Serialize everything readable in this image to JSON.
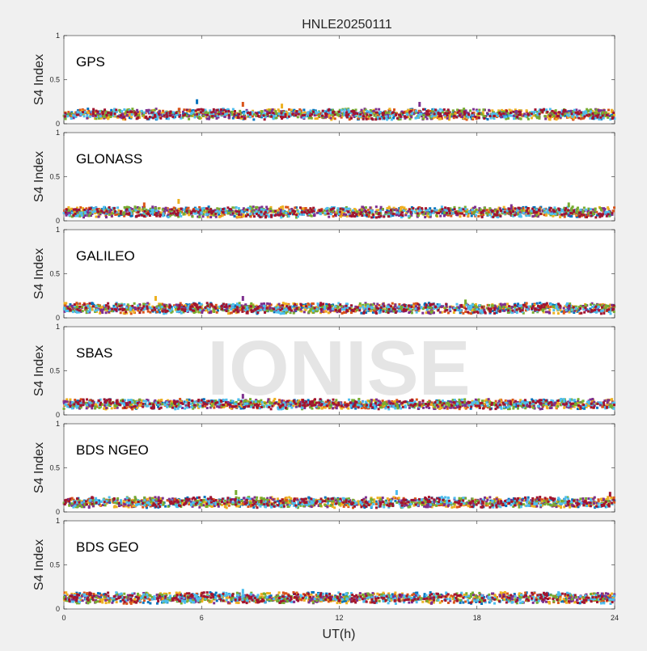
{
  "title": "HNLE20250111",
  "watermark": "IONISE",
  "x_axis": {
    "label": "UT(h)",
    "ticks": [
      "0",
      "6",
      "12",
      "18",
      "24"
    ],
    "tick_values": [
      0,
      6,
      12,
      18,
      24
    ],
    "range": [
      0,
      24
    ]
  },
  "colors": [
    "#0072BD",
    "#D95319",
    "#EDB120",
    "#7E2F8E",
    "#77AC30",
    "#4DBEEE",
    "#A2142F"
  ],
  "chart_data": [
    {
      "type": "scatter",
      "panel": "GPS",
      "ylabel": "S4 Index",
      "yticks": [
        "0",
        "0.5",
        "1"
      ],
      "ylim": [
        0,
        1
      ],
      "xlim": [
        0,
        24
      ],
      "baseline_range": [
        0.03,
        0.15
      ],
      "notable_points": [
        {
          "x": 5.8,
          "y": 0.25
        },
        {
          "x": 7.8,
          "y": 0.22
        },
        {
          "x": 9.5,
          "y": 0.2
        },
        {
          "x": 15.5,
          "y": 0.22
        }
      ]
    },
    {
      "type": "scatter",
      "panel": "GLONASS",
      "ylabel": "S4 Index",
      "yticks": [
        "0",
        "0.5",
        "1"
      ],
      "ylim": [
        0,
        1
      ],
      "xlim": [
        0,
        24
      ],
      "baseline_range": [
        0.02,
        0.14
      ],
      "notable_points": [
        {
          "x": 3.5,
          "y": 0.18
        },
        {
          "x": 5.0,
          "y": 0.22
        },
        {
          "x": 19.5,
          "y": 0.16
        },
        {
          "x": 22.0,
          "y": 0.18
        }
      ]
    },
    {
      "type": "scatter",
      "panel": "GALILEO",
      "ylabel": "S4 Index",
      "yticks": [
        "0",
        "0.5",
        "1"
      ],
      "ylim": [
        0,
        1
      ],
      "xlim": [
        0,
        24
      ],
      "baseline_range": [
        0.03,
        0.15
      ],
      "notable_points": [
        {
          "x": 4.0,
          "y": 0.22
        },
        {
          "x": 7.8,
          "y": 0.22
        },
        {
          "x": 17.5,
          "y": 0.18
        }
      ]
    },
    {
      "type": "scatter",
      "panel": "SBAS",
      "ylabel": "S4 Index",
      "yticks": [
        "0",
        "0.5",
        "1"
      ],
      "ylim": [
        0,
        1
      ],
      "xlim": [
        0,
        24
      ],
      "baseline_range": [
        0.05,
        0.16
      ],
      "notable_points": [
        {
          "x": 7.8,
          "y": 0.21
        }
      ]
    },
    {
      "type": "scatter",
      "panel": "BDS NGEO",
      "ylabel": "S4 Index",
      "yticks": [
        "0",
        "0.5",
        "1"
      ],
      "ylim": [
        0,
        1
      ],
      "xlim": [
        0,
        24
      ],
      "baseline_range": [
        0.03,
        0.15
      ],
      "notable_points": [
        {
          "x": 7.5,
          "y": 0.22
        },
        {
          "x": 14.5,
          "y": 0.22
        },
        {
          "x": 23.8,
          "y": 0.2
        }
      ]
    },
    {
      "type": "scatter",
      "panel": "BDS GEO",
      "ylabel": "S4 Index",
      "yticks": [
        "0",
        "0.5",
        "1"
      ],
      "ylim": [
        0,
        1
      ],
      "xlim": [
        0,
        24
      ],
      "baseline_range": [
        0.04,
        0.17
      ],
      "notable_points": [
        {
          "x": 7.8,
          "y": 0.2
        }
      ]
    }
  ]
}
